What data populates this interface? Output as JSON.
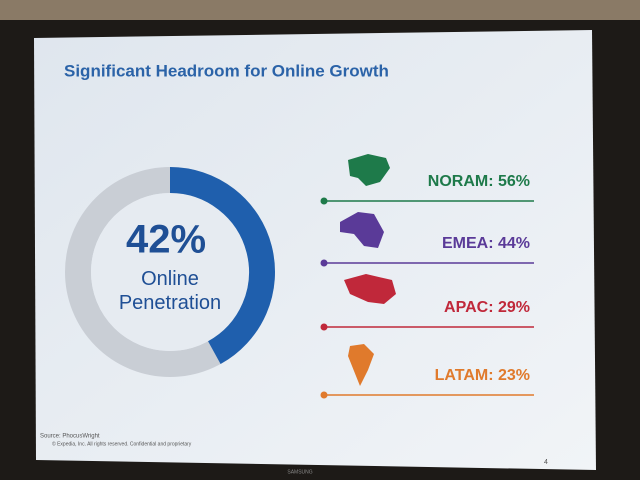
{
  "chart_data": [
    {
      "type": "donut",
      "title": "Significant Headroom for Online Growth",
      "values": [
        42
      ],
      "value_labels": [
        "42%"
      ],
      "center_label": "Online Penetration",
      "color": "#1f5fad",
      "track_color": "#c9ced5"
    },
    {
      "type": "list",
      "categories": [
        "NORAM",
        "EMEA",
        "APAC",
        "LATAM"
      ],
      "values": [
        56,
        44,
        29,
        23
      ],
      "value_labels": [
        "NORAM: 56%",
        "EMEA: 44%",
        "APAC: 29%",
        "LATAM: 23%"
      ],
      "colors": [
        "#1e7a4a",
        "#5a3a98",
        "#c0283a",
        "#e07a2c"
      ]
    }
  ],
  "footer": {
    "source": "Source: PhocusWright",
    "copyright": "© Expedia, Inc. All rights reserved. Confidential and proprietary",
    "page": "4",
    "brand": "SAMSUNG"
  }
}
